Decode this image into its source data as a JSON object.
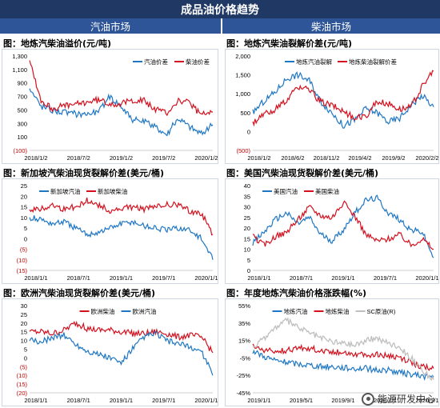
{
  "header": {
    "title": "成品油价格趋势",
    "left_section": "汽油市场",
    "right_section": "柴油市场"
  },
  "watermark": {
    "text": "能源研发中心",
    "icon": "wechat-logo-icon"
  },
  "chart_data": [
    {
      "id": "c1",
      "type": "line",
      "title": "图：地炼汽柴油溢价(元/吨)",
      "y_ticks": [
        "1,300",
        "1,100",
        "900",
        "700",
        "500",
        "300",
        "100",
        "(100)"
      ],
      "ylim": [
        -100,
        1300
      ],
      "x_ticks": [
        "2018/1/2",
        "2018/7/2",
        "2019/1/2",
        "2019/7/2",
        "2020/1/2"
      ],
      "series": [
        {
          "name": "汽油价差",
          "color": "#1f77c4",
          "values": [
            820,
            560,
            500,
            470,
            440,
            450,
            470,
            700,
            560,
            360,
            320,
            250,
            140,
            380,
            250,
            150,
            280
          ]
        },
        {
          "name": "柴油价差",
          "color": "#d4111e",
          "values": [
            1250,
            640,
            520,
            560,
            580,
            620,
            650,
            600,
            590,
            650,
            640,
            500,
            460,
            640,
            600,
            420,
            470
          ]
        }
      ],
      "legend": "top-right"
    },
    {
      "id": "c2",
      "type": "line",
      "title": "图：地炼汽柴油裂解价差(元/吨)",
      "y_ticks": [
        "2,000",
        "1,500",
        "1,000",
        "500",
        "0",
        "(500)"
      ],
      "ylim": [
        -500,
        2000
      ],
      "x_ticks": [
        "2018/1/2",
        "2018/6/2",
        "2018/11/2",
        "2019/4/2",
        "2019/9/2",
        "2020/2/2"
      ],
      "series": [
        {
          "name": "地炼汽油裂解",
          "color": "#1f77c4",
          "values": [
            500,
            800,
            1050,
            1400,
            1500,
            1350,
            800,
            500,
            150,
            300,
            600,
            500,
            250,
            350,
            700,
            950,
            650
          ]
        },
        {
          "name": "地炼柴油裂解价差",
          "color": "#d4111e",
          "values": [
            200,
            450,
            600,
            800,
            1200,
            1100,
            800,
            700,
            550,
            350,
            400,
            800,
            750,
            600,
            650,
            1200,
            1600
          ]
        }
      ],
      "legend": "top-center"
    },
    {
      "id": "c3",
      "type": "line",
      "title": "图：新加坡汽柴油现货裂解价差(美元/桶)",
      "y_ticks": [
        "25",
        "20",
        "15",
        "10",
        "5",
        "0",
        "(5)",
        "(10)",
        "(15)"
      ],
      "ylim": [
        -15,
        25
      ],
      "x_ticks": [
        "2018/1/1",
        "2018/7/1",
        "2019/1/1",
        "2019/7/1",
        "2020/1/1"
      ],
      "series": [
        {
          "name": "新加坡汽油",
          "color": "#1f77c4",
          "values": [
            10,
            9,
            7,
            8,
            5,
            2,
            3,
            5,
            7,
            8,
            6,
            5,
            4,
            5,
            4,
            0,
            -10
          ]
        },
        {
          "name": "新加坡柴油",
          "color": "#d4111e",
          "values": [
            14,
            14,
            16,
            14,
            15,
            18,
            16,
            13,
            14,
            15,
            14,
            15,
            16,
            16,
            13,
            12,
            2
          ]
        }
      ],
      "legend": "top-left"
    },
    {
      "id": "c4",
      "type": "line",
      "title": "图：美国汽柴油现货裂解价差(美元/桶)",
      "y_ticks": [
        "40",
        "35",
        "30",
        "25",
        "20",
        "15",
        "10",
        "5",
        "0"
      ],
      "ylim": [
        0,
        40
      ],
      "x_ticks": [
        "2018/1/1",
        "2018/7/1",
        "2019/1/1",
        "2019/7/1",
        "2020/1/1"
      ],
      "series": [
        {
          "name": "美国汽油",
          "color": "#1f77c4",
          "values": [
            13,
            18,
            24,
            27,
            22,
            25,
            17,
            14,
            19,
            27,
            33,
            34,
            27,
            24,
            19,
            18,
            6
          ]
        },
        {
          "name": "美国柴油",
          "color": "#d4111e",
          "values": [
            16,
            12,
            16,
            18,
            24,
            30,
            26,
            25,
            32,
            26,
            17,
            14,
            15,
            17,
            12,
            15,
            10
          ]
        }
      ],
      "legend": "top-left"
    },
    {
      "id": "c5",
      "type": "line",
      "title": "图：欧洲汽柴油现货裂解价差(美元/桶)",
      "y_ticks": [
        "30",
        "25",
        "20",
        "15",
        "10",
        "5",
        "0",
        "(5)",
        "(10)",
        "(15)",
        "(20)"
      ],
      "ylim": [
        -20,
        30
      ],
      "x_ticks": [
        "2018/1/1",
        "2018/7/1",
        "2019/1/1",
        "2019/7/1",
        "2020/1/1"
      ],
      "series": [
        {
          "name": "欧洲柴油",
          "color": "#d4111e",
          "values": [
            15,
            15,
            14,
            16,
            20,
            17,
            16,
            16,
            15,
            14,
            14,
            15,
            14,
            12,
            13,
            12,
            3
          ]
        },
        {
          "name": "欧洲汽油",
          "color": "#1f77c4",
          "values": [
            10,
            9,
            12,
            13,
            8,
            4,
            2,
            0,
            -3,
            5,
            12,
            14,
            10,
            8,
            6,
            4,
            -10
          ]
        }
      ],
      "legend": "top-center"
    },
    {
      "id": "c6",
      "type": "line",
      "title": "图：年度地炼汽柴油价格涨跌幅(%)",
      "y_ticks": [
        "55%",
        "35%",
        "15%",
        "-5%",
        "-25%",
        "-45%"
      ],
      "ylim": [
        -45,
        55
      ],
      "x_ticks": [
        "2019/1/1",
        "2019/5/1",
        "2019/9/1",
        "2020/1/1",
        "2020/5/1"
      ],
      "series": [
        {
          "name": "地炼汽油",
          "color": "#1f77c4",
          "values": [
            3,
            -3,
            -8,
            -10,
            -12,
            -13,
            -15,
            -15,
            -16,
            -17,
            -17,
            -19,
            -19,
            -22,
            -24,
            -26,
            -27
          ]
        },
        {
          "name": "地炼柴油",
          "color": "#d4111e",
          "values": [
            8,
            4,
            2,
            4,
            6,
            6,
            4,
            2,
            2,
            0,
            -2,
            -1,
            -3,
            -5,
            -10,
            -15,
            -17
          ]
        },
        {
          "name": "SC原油(R)",
          "color": "#bfbfbf",
          "values": [
            5,
            18,
            30,
            38,
            30,
            24,
            18,
            14,
            12,
            10,
            15,
            18,
            12,
            8,
            -5,
            -20,
            -30
          ]
        }
      ],
      "legend": "top-center"
    }
  ]
}
